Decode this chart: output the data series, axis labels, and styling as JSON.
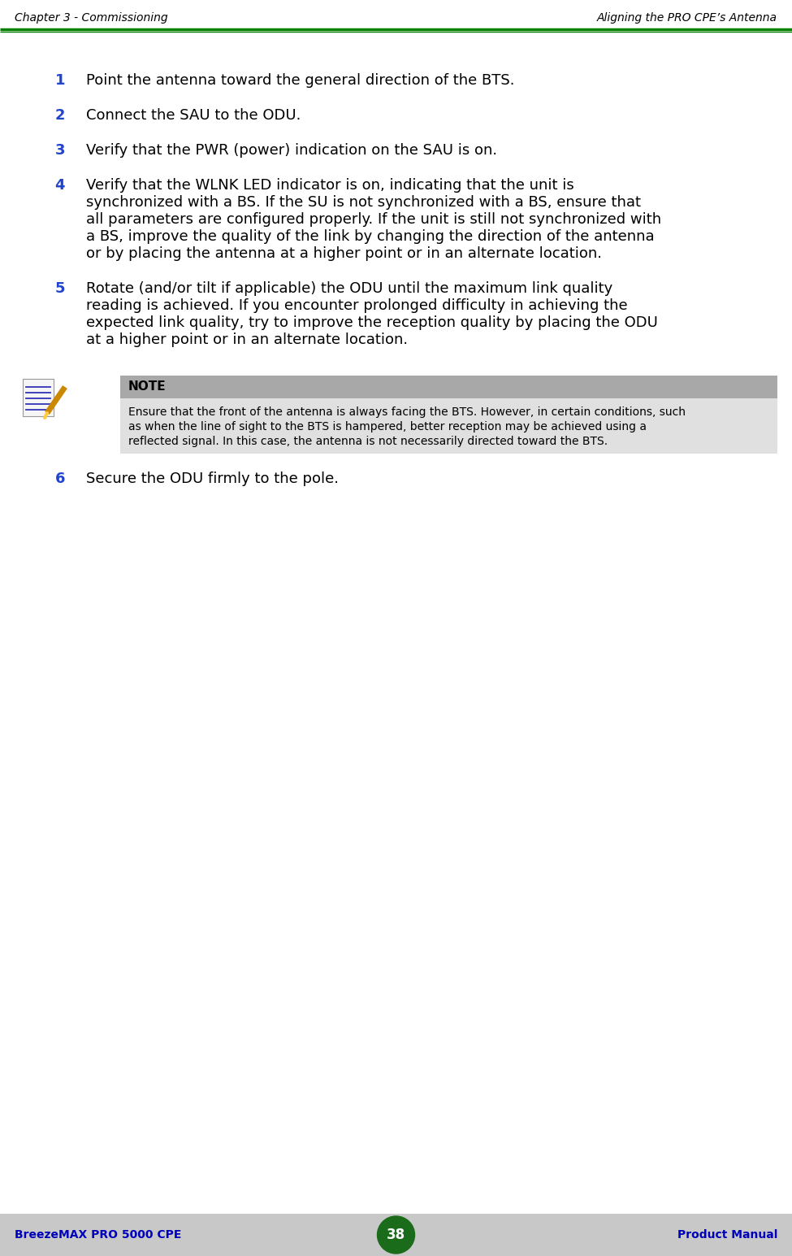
{
  "header_left": "Chapter 3 - Commissioning",
  "header_right": "Aligning the PRO CPE’s Antenna",
  "header_line_color": "#008000",
  "footer_left": "BreezeMAX PRO 5000 CPE",
  "footer_center": "38",
  "footer_right": "Product Manual",
  "footer_bg": "#c8c8c8",
  "footer_text_color": "#0000bb",
  "footer_page_bg": "#1a6b1a",
  "footer_page_text": "#ffffff",
  "bg_color": "#ffffff",
  "number_color": "#2244cc",
  "body_text_color": "#000000",
  "note_header_bg": "#a8a8a8",
  "note_body_bg": "#e0e0e0",
  "steps": [
    {
      "num": "1",
      "text": "Point the antenna toward the general direction of the BTS.",
      "lines": 1
    },
    {
      "num": "2",
      "text": "Connect the SAU to the ODU.",
      "lines": 1
    },
    {
      "num": "3",
      "text": "Verify that the PWR (power) indication on the SAU is on.",
      "lines": 1
    },
    {
      "num": "4",
      "text": "Verify that the WLNK LED indicator is on, indicating that the unit is\nsynchronized with a BS. If the SU is not synchronized with a BS, ensure that\nall parameters are configured properly. If the unit is still not synchronized with\na BS, improve the quality of the link by changing the direction of the antenna\nor by placing the antenna at a higher point or in an alternate location.",
      "lines": 5
    },
    {
      "num": "5",
      "text": "Rotate (and/or tilt if applicable) the ODU until the maximum link quality\nreading is achieved. If you encounter prolonged difficulty in achieving the\nexpected link quality, try to improve the reception quality by placing the ODU\nat a higher point or in an alternate location.",
      "lines": 4
    },
    {
      "num": "6",
      "text": "Secure the ODU firmly to the pole.",
      "lines": 1
    }
  ],
  "note_title": "NOTE",
  "note_text_lines": [
    "Ensure that the front of the antenna is always facing the BTS. However, in certain conditions, such",
    "as when the line of sight to the BTS is hampered, better reception may be achieved using a",
    "reflected signal. In this case, the antenna is not necessarily directed toward the BTS."
  ],
  "body_font_size": 13,
  "number_font_size": 13,
  "header_font_size": 10,
  "footer_font_size": 10,
  "note_title_font_size": 11,
  "note_text_font_size": 10
}
